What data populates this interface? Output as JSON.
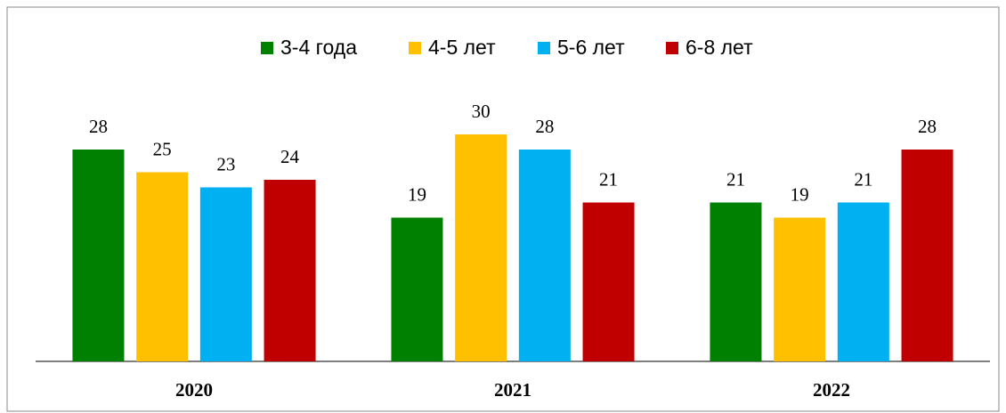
{
  "chart_data": {
    "type": "bar",
    "categories": [
      "2020",
      "2021",
      "2022"
    ],
    "series": [
      {
        "name": "3-4 года",
        "color": "#008000",
        "values": [
          28,
          19,
          21
        ]
      },
      {
        "name": "4-5 лет",
        "color": "#ffc000",
        "values": [
          25,
          30,
          19
        ]
      },
      {
        "name": "5-6 лет",
        "color": "#00b0f0",
        "values": [
          23,
          28,
          21
        ]
      },
      {
        "name": "6-8 лет",
        "color": "#c00000",
        "values": [
          24,
          21,
          28
        ]
      }
    ],
    "legend": "top"
  }
}
